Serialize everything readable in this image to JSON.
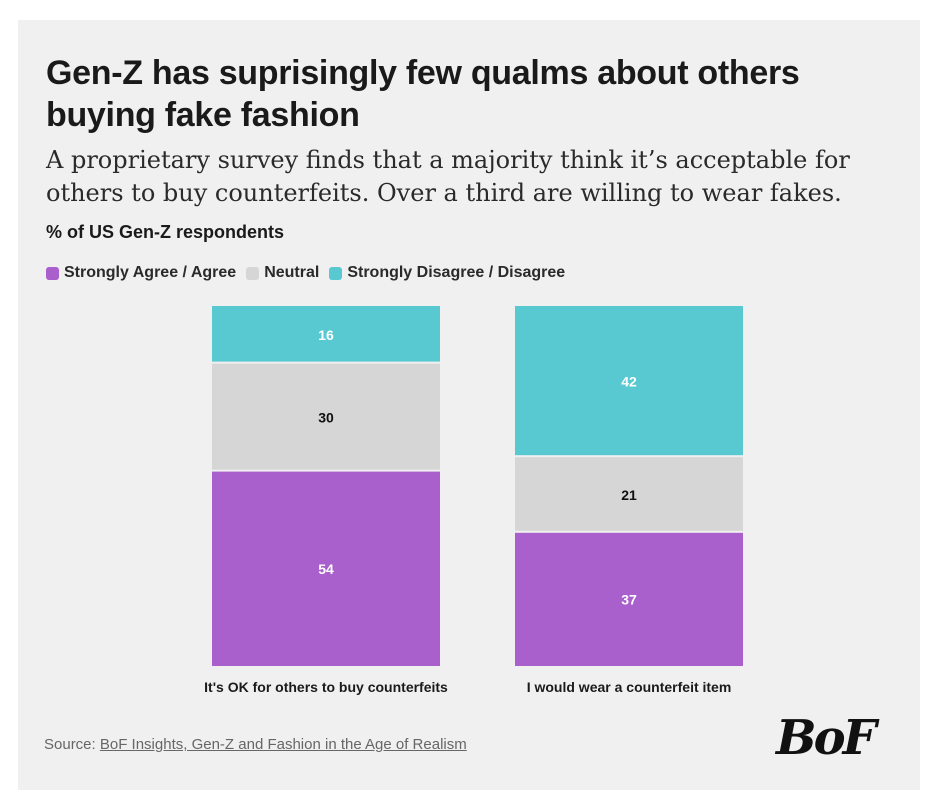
{
  "title": "Gen-Z has suprisingly few qualms about others buying fake fashion",
  "subtitle": "A proprietary survey finds that a majority think it’s acceptable for others to buy counterfeits. Over a third are willing to wear fakes.",
  "unit_label": "% of US Gen-Z respondents",
  "legend": [
    {
      "label": "Strongly Agree / Agree",
      "color": "#a95fcc"
    },
    {
      "label": "Neutral",
      "color": "#d6d6d6"
    },
    {
      "label": "Strongly Disagree / Disagree",
      "color": "#58c9d1"
    }
  ],
  "chart_data": {
    "type": "bar",
    "stacked": true,
    "normalized_to": 100,
    "categories": [
      "It's OK for others to buy counterfeits",
      "I would wear a counterfeit item"
    ],
    "series": [
      {
        "name": "Strongly Agree / Agree",
        "values": [
          54,
          37
        ],
        "color": "#a95fcc",
        "label_color": "#ffffff"
      },
      {
        "name": "Neutral",
        "values": [
          30,
          21
        ],
        "color": "#d6d6d6",
        "label_color": "#111111"
      },
      {
        "name": "Strongly Disagree / Disagree",
        "values": [
          16,
          42
        ],
        "color": "#58c9d1",
        "label_color": "#ffffff"
      }
    ],
    "title": "Gen-Z has suprisingly few qualms about others buying fake fashion",
    "ylabel": "% of US Gen-Z respondents",
    "ylim": [
      0,
      100
    ],
    "grid": false,
    "legend_position": "top-left"
  },
  "source": {
    "prefix": "Source: ",
    "link_text": "BoF Insights, Gen-Z and Fashion in the Age of Realism"
  },
  "logo": {
    "text": "BoF"
  }
}
